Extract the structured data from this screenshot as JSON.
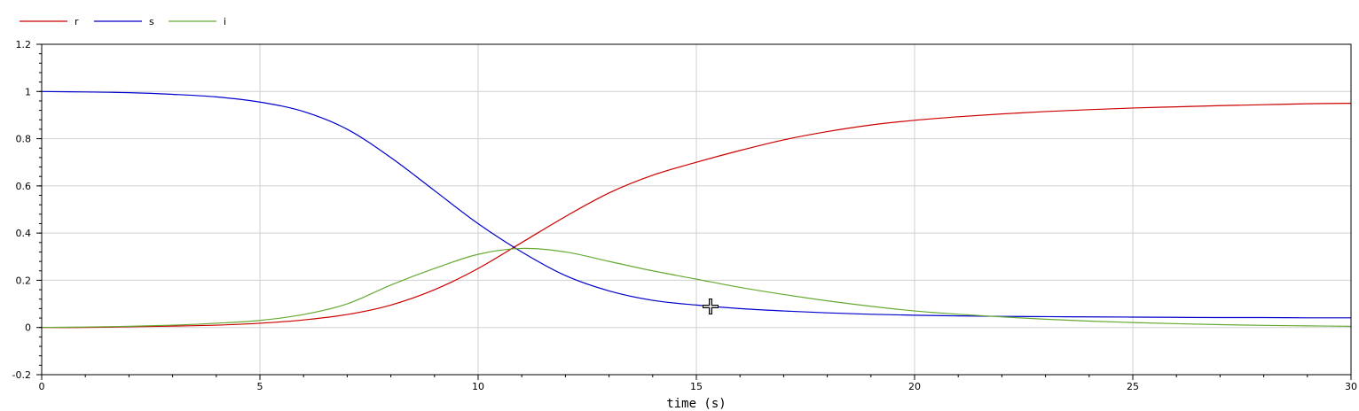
{
  "chart_data": {
    "type": "line",
    "xlabel": "time (s)",
    "ylabel": "",
    "xlim": [
      0,
      30
    ],
    "ylim": [
      -0.2,
      1.2
    ],
    "xticks": [
      0,
      5,
      10,
      15,
      20,
      25,
      30
    ],
    "yticks": [
      -0.2,
      0,
      0.2,
      0.4,
      0.6,
      0.8,
      1,
      1.2
    ],
    "grid": true,
    "legend_position": "top-left",
    "series": [
      {
        "name": "r",
        "color": "#cc0000",
        "x": [
          0,
          1,
          2,
          3,
          4,
          5,
          6,
          7,
          8,
          9,
          10,
          11,
          12,
          13,
          14,
          15,
          16,
          17,
          18,
          19,
          20,
          21,
          22,
          23,
          24,
          25,
          26,
          27,
          28,
          29,
          30
        ],
        "y": [
          0,
          0,
          0.003,
          0.006,
          0.01,
          0.018,
          0.032,
          0.055,
          0.095,
          0.16,
          0.25,
          0.36,
          0.47,
          0.57,
          0.645,
          0.7,
          0.75,
          0.795,
          0.83,
          0.858,
          0.878,
          0.893,
          0.905,
          0.915,
          0.923,
          0.93,
          0.935,
          0.94,
          0.944,
          0.948,
          0.95
        ]
      },
      {
        "name": "s",
        "color": "#0000cc",
        "x": [
          0,
          1,
          2,
          3,
          4,
          5,
          6,
          7,
          8,
          9,
          10,
          11,
          12,
          13,
          14,
          15,
          16,
          17,
          18,
          19,
          20,
          21,
          22,
          23,
          24,
          25,
          26,
          27,
          28,
          29,
          30
        ],
        "y": [
          1,
          0.998,
          0.995,
          0.988,
          0.977,
          0.955,
          0.915,
          0.84,
          0.72,
          0.58,
          0.44,
          0.32,
          0.22,
          0.155,
          0.115,
          0.095,
          0.08,
          0.07,
          0.062,
          0.056,
          0.052,
          0.049,
          0.047,
          0.046,
          0.045,
          0.044,
          0.043,
          0.042,
          0.042,
          0.041,
          0.041
        ]
      },
      {
        "name": "i",
        "color": "#66aa33",
        "x": [
          0,
          1,
          2,
          3,
          4,
          5,
          6,
          7,
          8,
          9,
          10,
          11,
          12,
          13,
          14,
          15,
          16,
          17,
          18,
          19,
          20,
          21,
          22,
          23,
          24,
          25,
          26,
          27,
          28,
          29,
          30
        ],
        "y": [
          0,
          0.002,
          0.005,
          0.01,
          0.018,
          0.03,
          0.055,
          0.1,
          0.18,
          0.25,
          0.31,
          0.335,
          0.32,
          0.28,
          0.24,
          0.205,
          0.17,
          0.14,
          0.113,
          0.09,
          0.07,
          0.056,
          0.045,
          0.035,
          0.027,
          0.021,
          0.016,
          0.012,
          0.009,
          0.007,
          0.005
        ]
      }
    ]
  }
}
